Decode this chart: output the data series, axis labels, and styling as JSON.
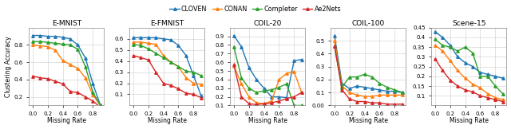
{
  "x": [
    0.0,
    0.1,
    0.2,
    0.3,
    0.4,
    0.5,
    0.6,
    0.7,
    0.8,
    0.9
  ],
  "datasets": {
    "E-MNIST": {
      "CLOVEN": [
        0.91,
        0.91,
        0.9,
        0.9,
        0.89,
        0.87,
        0.8,
        0.65,
        0.35,
        0.1
      ],
      "CONAN": [
        0.8,
        0.79,
        0.78,
        0.74,
        0.62,
        0.57,
        0.53,
        0.42,
        0.22,
        0.1
      ],
      "Completer": [
        0.84,
        0.84,
        0.83,
        0.82,
        0.81,
        0.8,
        0.75,
        0.55,
        0.25,
        0.1
      ],
      "Ae2Nets": [
        0.44,
        0.42,
        0.41,
        0.38,
        0.35,
        0.26,
        0.25,
        0.2,
        0.15,
        0.08
      ]
    },
    "E-FMNIST": {
      "CLOVEN": [
        0.61,
        0.61,
        0.61,
        0.61,
        0.6,
        0.59,
        0.54,
        0.45,
        0.27,
        0.09
      ],
      "CONAN": [
        0.57,
        0.57,
        0.56,
        0.55,
        0.45,
        0.39,
        0.35,
        0.25,
        0.2,
        0.19
      ],
      "Completer": [
        0.55,
        0.54,
        0.51,
        0.47,
        0.43,
        0.39,
        0.35,
        0.31,
        0.3,
        0.27
      ],
      "Ae2Nets": [
        0.45,
        0.43,
        0.41,
        0.3,
        0.2,
        0.18,
        0.15,
        0.11,
        0.1,
        0.07
      ]
    },
    "COIL-20": {
      "CLOVEN": [
        0.91,
        0.78,
        0.54,
        0.4,
        0.3,
        0.2,
        0.2,
        0.19,
        0.62,
        0.63
      ],
      "CONAN": [
        0.56,
        0.35,
        0.2,
        0.13,
        0.12,
        0.15,
        0.4,
        0.47,
        0.49,
        0.25
      ],
      "Completer": [
        0.78,
        0.42,
        0.3,
        0.25,
        0.27,
        0.28,
        0.31,
        0.35,
        0.1,
        0.1
      ],
      "Ae2Nets": [
        0.57,
        0.2,
        0.12,
        0.11,
        0.12,
        0.13,
        0.15,
        0.18,
        0.2,
        0.25
      ]
    },
    "COIL-100": {
      "CLOVEN": [
        0.54,
        0.17,
        0.13,
        0.15,
        0.14,
        0.13,
        0.12,
        0.11,
        0.11,
        0.1
      ],
      "CONAN": [
        0.5,
        0.15,
        0.1,
        0.08,
        0.07,
        0.07,
        0.08,
        0.08,
        0.08,
        0.08
      ],
      "Completer": [
        0.46,
        0.14,
        0.22,
        0.22,
        0.24,
        0.22,
        0.17,
        0.14,
        0.12,
        0.1
      ],
      "Ae2Nets": [
        0.46,
        0.12,
        0.05,
        0.03,
        0.03,
        0.02,
        0.02,
        0.01,
        0.01,
        0.01
      ]
    },
    "Scene-15": {
      "CLOVEN": [
        0.43,
        0.4,
        0.36,
        0.3,
        0.27,
        0.25,
        0.22,
        0.21,
        0.2,
        0.19
      ],
      "CONAN": [
        0.36,
        0.33,
        0.28,
        0.23,
        0.19,
        0.16,
        0.14,
        0.11,
        0.09,
        0.08
      ],
      "Completer": [
        0.39,
        0.36,
        0.35,
        0.33,
        0.35,
        0.32,
        0.2,
        0.2,
        0.15,
        0.11
      ],
      "Ae2Nets": [
        0.29,
        0.23,
        0.18,
        0.15,
        0.13,
        0.12,
        0.1,
        0.09,
        0.08,
        0.07
      ]
    }
  },
  "ylims": {
    "E-MNIST": [
      0.1,
      1.0
    ],
    "E-FMNIST": [
      0.0,
      0.7
    ],
    "COIL-20": [
      0.1,
      1.0
    ],
    "COIL-100": [
      0.0,
      0.6
    ],
    "Scene-15": [
      0.05,
      0.45
    ]
  },
  "yticks": {
    "E-MNIST": [
      0.2,
      0.4,
      0.6,
      0.8
    ],
    "E-FMNIST": [
      0.1,
      0.2,
      0.3,
      0.4,
      0.5,
      0.6
    ],
    "COIL-20": [
      0.1,
      0.2,
      0.3,
      0.4,
      0.5,
      0.6,
      0.7,
      0.8,
      0.9
    ],
    "COIL-100": [
      0.0,
      0.1,
      0.2,
      0.3,
      0.4,
      0.5
    ],
    "Scene-15": [
      0.1,
      0.15,
      0.2,
      0.25,
      0.3,
      0.35,
      0.4,
      0.45
    ]
  },
  "colors": {
    "CLOVEN": "#1f77b4",
    "CONAN": "#ff7f0e",
    "Completer": "#2ca02c",
    "Ae2Nets": "#d62728"
  },
  "subplot_titles": [
    "E-MNIST",
    "E-FMNIST",
    "COIL-20",
    "COIL-100",
    "Scene-15"
  ],
  "xlabel": "Missing Rate",
  "ylabel": "Clustering Accuracy",
  "legend_labels": [
    "CLOVEN",
    "CONAN",
    "Completer",
    "Ae2Nets"
  ],
  "marker": "^",
  "markersize": 2.5,
  "linewidth": 1.0
}
